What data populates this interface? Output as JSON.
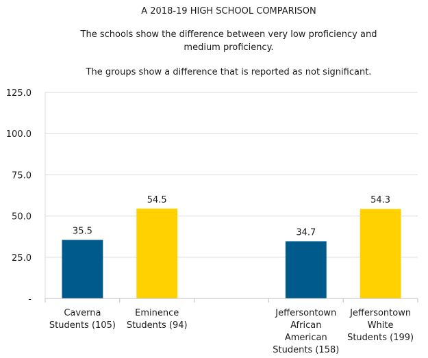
{
  "chart_data": {
    "type": "bar",
    "title": "A 2018-19 HIGH SCHOOL COMPARISON",
    "subtitle": [
      "The schools show the difference between very low proficiency and",
      "medium proficiency.",
      "",
      "The groups show a difference that is reported as not significant."
    ],
    "xlabel": "",
    "ylabel": "",
    "ylim": [
      0,
      125
    ],
    "yticks": [
      {
        "value": 0,
        "label": "-"
      },
      {
        "value": 25,
        "label": "25.0"
      },
      {
        "value": 50,
        "label": "50.0"
      },
      {
        "value": 75,
        "label": "75.0"
      },
      {
        "value": 100,
        "label": "100.0"
      },
      {
        "value": 125,
        "label": "125.0"
      }
    ],
    "grid": true,
    "legend": "none",
    "categories": [
      {
        "label": [
          "Caverna",
          "Students (105)"
        ],
        "value": 35.5,
        "value_label": "35.5",
        "color": "#005a8c"
      },
      {
        "label": [
          "Eminence",
          "Students (94)"
        ],
        "value": 54.5,
        "value_label": "54.5",
        "color": "#ffd100"
      },
      {
        "label": [],
        "value": null,
        "value_label": "",
        "color": ""
      },
      {
        "label": [
          "Jeffersontown",
          "African",
          "American",
          "Students (158)"
        ],
        "value": 34.7,
        "value_label": "34.7",
        "color": "#005a8c"
      },
      {
        "label": [
          "Jeffersontown",
          "White",
          "Students (199)"
        ],
        "value": 54.3,
        "value_label": "54.3",
        "color": "#ffd100"
      }
    ]
  }
}
